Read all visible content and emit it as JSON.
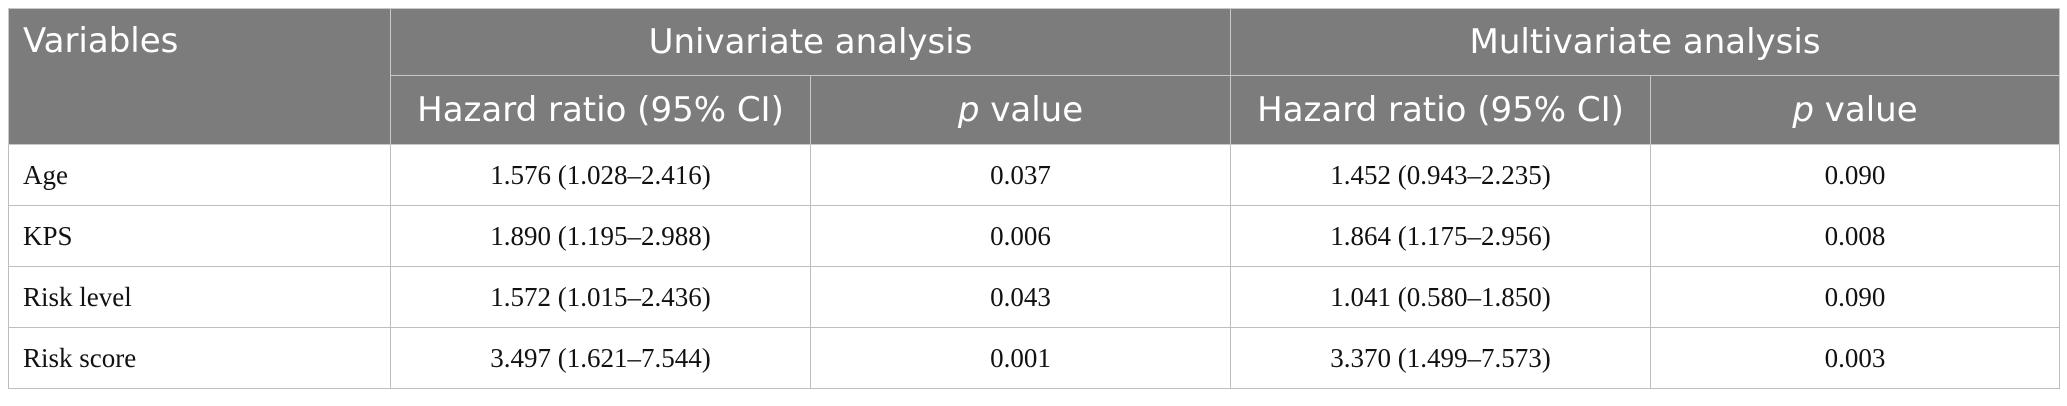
{
  "table": {
    "header": {
      "variables": "Variables",
      "univariate": "Univariate analysis",
      "multivariate": "Multivariate analysis",
      "hazard_ratio": "Hazard ratio (95% CI)",
      "p_italic": "p",
      "p_rest": " value"
    },
    "rows": [
      {
        "variable": "Age",
        "uni_hr": "1.576 (1.028–2.416)",
        "uni_p": "0.037",
        "multi_hr": "1.452 (0.943–2.235)",
        "multi_p": "0.090"
      },
      {
        "variable": "KPS",
        "uni_hr": "1.890 (1.195–2.988)",
        "uni_p": "0.006",
        "multi_hr": "1.864 (1.175–2.956)",
        "multi_p": "0.008"
      },
      {
        "variable": "Risk level",
        "uni_hr": "1.572 (1.015–2.436)",
        "uni_p": "0.043",
        "multi_hr": "1.041 (0.580–1.850)",
        "multi_p": "0.090"
      },
      {
        "variable": "Risk score",
        "uni_hr": "3.497 (1.621–7.544)",
        "uni_p": "0.001",
        "multi_hr": "3.370 (1.499–7.573)",
        "multi_p": "0.003"
      }
    ]
  },
  "colors": {
    "header_bg": "#7b7c7b",
    "header_text": "#ffffff",
    "grid_line": "#bdbdbd"
  }
}
